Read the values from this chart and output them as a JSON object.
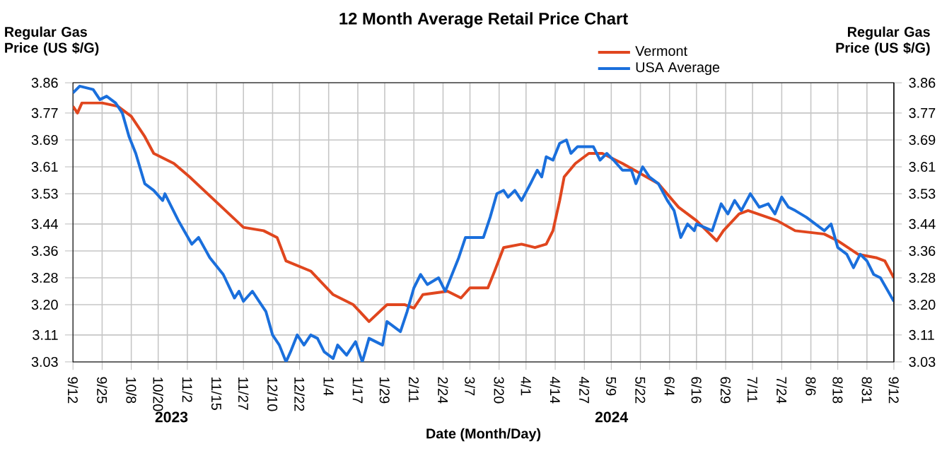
{
  "chart_data": {
    "type": "line",
    "title": "12 Month Average Retail Price Chart",
    "xlabel": "Date (Month/Day)",
    "ylabel": "Regular Gas Price (US $/G)",
    "y2label": "Regular Gas Price (US $/G)",
    "annotations": [
      "2023",
      "2024"
    ],
    "xlim": [
      "2023-09-12",
      "2024-09-12"
    ],
    "xticks": [
      {
        "value": "2023-09-12",
        "label": "9/12"
      },
      {
        "value": "2023-09-25",
        "label": "9/25"
      },
      {
        "value": "2023-10-08",
        "label": "10/8"
      },
      {
        "value": "2023-10-20",
        "label": "10/20"
      },
      {
        "value": "2023-11-02",
        "label": "11/2"
      },
      {
        "value": "2023-11-15",
        "label": "11/15"
      },
      {
        "value": "2023-11-27",
        "label": "11/27"
      },
      {
        "value": "2023-12-10",
        "label": "12/10"
      },
      {
        "value": "2023-12-22",
        "label": "12/22"
      },
      {
        "value": "2024-01-04",
        "label": "1/4"
      },
      {
        "value": "2024-01-17",
        "label": "1/17"
      },
      {
        "value": "2024-01-29",
        "label": "1/29"
      },
      {
        "value": "2024-02-11",
        "label": "2/11"
      },
      {
        "value": "2024-02-24",
        "label": "2/24"
      },
      {
        "value": "2024-03-07",
        "label": "3/7"
      },
      {
        "value": "2024-03-20",
        "label": "3/20"
      },
      {
        "value": "2024-04-01",
        "label": "4/1"
      },
      {
        "value": "2024-04-14",
        "label": "4/14"
      },
      {
        "value": "2024-04-27",
        "label": "4/27"
      },
      {
        "value": "2024-05-09",
        "label": "5/9"
      },
      {
        "value": "2024-05-22",
        "label": "5/22"
      },
      {
        "value": "2024-06-04",
        "label": "6/4"
      },
      {
        "value": "2024-06-16",
        "label": "6/16"
      },
      {
        "value": "2024-06-29",
        "label": "6/29"
      },
      {
        "value": "2024-07-11",
        "label": "7/11"
      },
      {
        "value": "2024-07-24",
        "label": "7/24"
      },
      {
        "value": "2024-08-06",
        "label": "8/6"
      },
      {
        "value": "2024-08-18",
        "label": "8/18"
      },
      {
        "value": "2024-08-31",
        "label": "8/31"
      },
      {
        "value": "2024-09-12",
        "label": "9/12"
      }
    ],
    "ylim": [
      3.03,
      3.86
    ],
    "yticks": [
      3.03,
      3.11,
      {
        "value": 3.2,
        "label": "3.20"
      },
      3.28,
      3.36,
      3.44,
      3.53,
      3.61,
      3.69,
      3.77,
      3.86
    ],
    "y2lim": [
      3.03,
      3.86
    ],
    "y2ticks": [
      3.03,
      3.11,
      {
        "value": 3.2,
        "label": "3.20"
      },
      3.28,
      3.36,
      3.44,
      3.53,
      3.61,
      3.69,
      3.77,
      3.86
    ],
    "grid": true,
    "legend": "top right",
    "line_style": "solid",
    "series": [
      {
        "name": "Vermont",
        "color": "#e0461e",
        "x": [
          "2023-09-12",
          "2023-09-14",
          "2023-09-16",
          "2023-09-25",
          "2023-10-02",
          "2023-10-08",
          "2023-10-14",
          "2023-10-18",
          "2023-10-27",
          "2023-11-03",
          "2023-11-11",
          "2023-11-19",
          "2023-11-27",
          "2023-12-06",
          "2023-12-12",
          "2023-12-16",
          "2023-12-27",
          "2024-01-06",
          "2024-01-15",
          "2024-01-22",
          "2024-01-30",
          "2024-02-07",
          "2024-02-11",
          "2024-02-15",
          "2024-02-26",
          "2024-03-03",
          "2024-03-07",
          "2024-03-15",
          "2024-03-18",
          "2024-03-22",
          "2024-03-30",
          "2024-04-05",
          "2024-04-10",
          "2024-04-13",
          "2024-04-16",
          "2024-04-18",
          "2024-04-23",
          "2024-04-29",
          "2024-05-05",
          "2024-05-14",
          "2024-05-22",
          "2024-05-30",
          "2024-06-08",
          "2024-06-16",
          "2024-06-25",
          "2024-06-28",
          "2024-07-05",
          "2024-07-09",
          "2024-07-22",
          "2024-07-30",
          "2024-08-12",
          "2024-08-18",
          "2024-08-27",
          "2024-09-04",
          "2024-09-08",
          "2024-09-12"
        ],
        "values": [
          3.79,
          3.77,
          3.8,
          3.8,
          3.79,
          3.76,
          3.7,
          3.65,
          3.62,
          3.58,
          3.53,
          3.48,
          3.43,
          3.42,
          3.4,
          3.33,
          3.3,
          3.23,
          3.2,
          3.15,
          3.2,
          3.2,
          3.19,
          3.23,
          3.24,
          3.22,
          3.25,
          3.25,
          3.3,
          3.37,
          3.38,
          3.37,
          3.38,
          3.42,
          3.51,
          3.58,
          3.62,
          3.65,
          3.65,
          3.62,
          3.59,
          3.56,
          3.49,
          3.45,
          3.39,
          3.42,
          3.47,
          3.48,
          3.45,
          3.42,
          3.41,
          3.39,
          3.35,
          3.34,
          3.33,
          3.28
        ]
      },
      {
        "name": "USA Average",
        "color": "#1a6fdc",
        "x": [
          "2023-09-12",
          "2023-09-15",
          "2023-09-21",
          "2023-09-24",
          "2023-09-27",
          "2023-10-01",
          "2023-10-04",
          "2023-10-07",
          "2023-10-10",
          "2023-10-14",
          "2023-10-18",
          "2023-10-22",
          "2023-10-23",
          "2023-10-26",
          "2023-10-29",
          "2023-11-04",
          "2023-11-07",
          "2023-11-12",
          "2023-11-18",
          "2023-11-23",
          "2023-11-25",
          "2023-11-27",
          "2023-12-01",
          "2023-12-04",
          "2023-12-07",
          "2023-12-10",
          "2023-12-13",
          "2023-12-16",
          "2023-12-18",
          "2023-12-21",
          "2023-12-24",
          "2023-12-27",
          "2023-12-30",
          "2024-01-02",
          "2024-01-06",
          "2024-01-08",
          "2024-01-12",
          "2024-01-16",
          "2024-01-19",
          "2024-01-22",
          "2024-01-28",
          "2024-01-30",
          "2024-02-05",
          "2024-02-08",
          "2024-02-11",
          "2024-02-14",
          "2024-02-17",
          "2024-02-22",
          "2024-02-25",
          "2024-02-28",
          "2024-03-02",
          "2024-03-05",
          "2024-03-09",
          "2024-03-13",
          "2024-03-16",
          "2024-03-19",
          "2024-03-22",
          "2024-03-24",
          "2024-03-27",
          "2024-03-30",
          "2024-04-03",
          "2024-04-06",
          "2024-04-08",
          "2024-04-10",
          "2024-04-13",
          "2024-04-16",
          "2024-04-19",
          "2024-04-21",
          "2024-04-24",
          "2024-05-01",
          "2024-05-04",
          "2024-05-07",
          "2024-05-10",
          "2024-05-14",
          "2024-05-18",
          "2024-05-20",
          "2024-05-23",
          "2024-05-26",
          "2024-05-30",
          "2024-06-03",
          "2024-06-06",
          "2024-06-09",
          "2024-06-12",
          "2024-06-15",
          "2024-06-16",
          "2024-06-23",
          "2024-06-27",
          "2024-06-30",
          "2024-07-03",
          "2024-07-06",
          "2024-07-10",
          "2024-07-14",
          "2024-07-18",
          "2024-07-21",
          "2024-07-24",
          "2024-07-27",
          "2024-07-30",
          "2024-08-04",
          "2024-08-08",
          "2024-08-12",
          "2024-08-15",
          "2024-08-18",
          "2024-08-22",
          "2024-08-25",
          "2024-08-28",
          "2024-08-31",
          "2024-09-03",
          "2024-09-06",
          "2024-09-12"
        ],
        "values": [
          3.83,
          3.85,
          3.84,
          3.81,
          3.82,
          3.8,
          3.77,
          3.7,
          3.65,
          3.56,
          3.54,
          3.51,
          3.53,
          3.49,
          3.45,
          3.38,
          3.4,
          3.34,
          3.29,
          3.22,
          3.24,
          3.21,
          3.24,
          3.21,
          3.18,
          3.11,
          3.08,
          3.03,
          3.06,
          3.11,
          3.08,
          3.11,
          3.1,
          3.06,
          3.04,
          3.08,
          3.05,
          3.09,
          3.03,
          3.1,
          3.08,
          3.15,
          3.12,
          3.18,
          3.25,
          3.29,
          3.26,
          3.28,
          3.24,
          3.29,
          3.34,
          3.4,
          3.4,
          3.4,
          3.46,
          3.53,
          3.54,
          3.52,
          3.54,
          3.51,
          3.56,
          3.6,
          3.58,
          3.64,
          3.63,
          3.68,
          3.69,
          3.65,
          3.67,
          3.67,
          3.63,
          3.65,
          3.63,
          3.6,
          3.6,
          3.56,
          3.61,
          3.58,
          3.56,
          3.51,
          3.48,
          3.4,
          3.44,
          3.42,
          3.44,
          3.42,
          3.5,
          3.47,
          3.51,
          3.48,
          3.53,
          3.49,
          3.5,
          3.47,
          3.52,
          3.49,
          3.48,
          3.46,
          3.44,
          3.42,
          3.44,
          3.37,
          3.35,
          3.31,
          3.35,
          3.33,
          3.29,
          3.28,
          3.21
        ]
      }
    ]
  }
}
